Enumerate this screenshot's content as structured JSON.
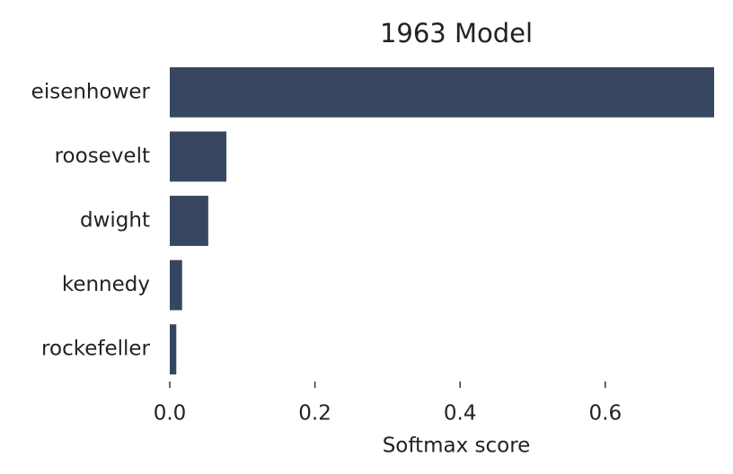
{
  "chart_data": {
    "type": "barh",
    "title": "1963 Model",
    "xlabel": "Softmax score",
    "categories": [
      "eisenhower",
      "roosevelt",
      "dwight",
      "kennedy",
      "rockefeller"
    ],
    "values": [
      0.75,
      0.078,
      0.053,
      0.017,
      0.009
    ],
    "color": "#36475f",
    "xlim": [
      0,
      0.75
    ],
    "xticks": [
      {
        "value": 0,
        "label": "0.0"
      },
      0.2,
      0.4,
      0.6
    ]
  }
}
